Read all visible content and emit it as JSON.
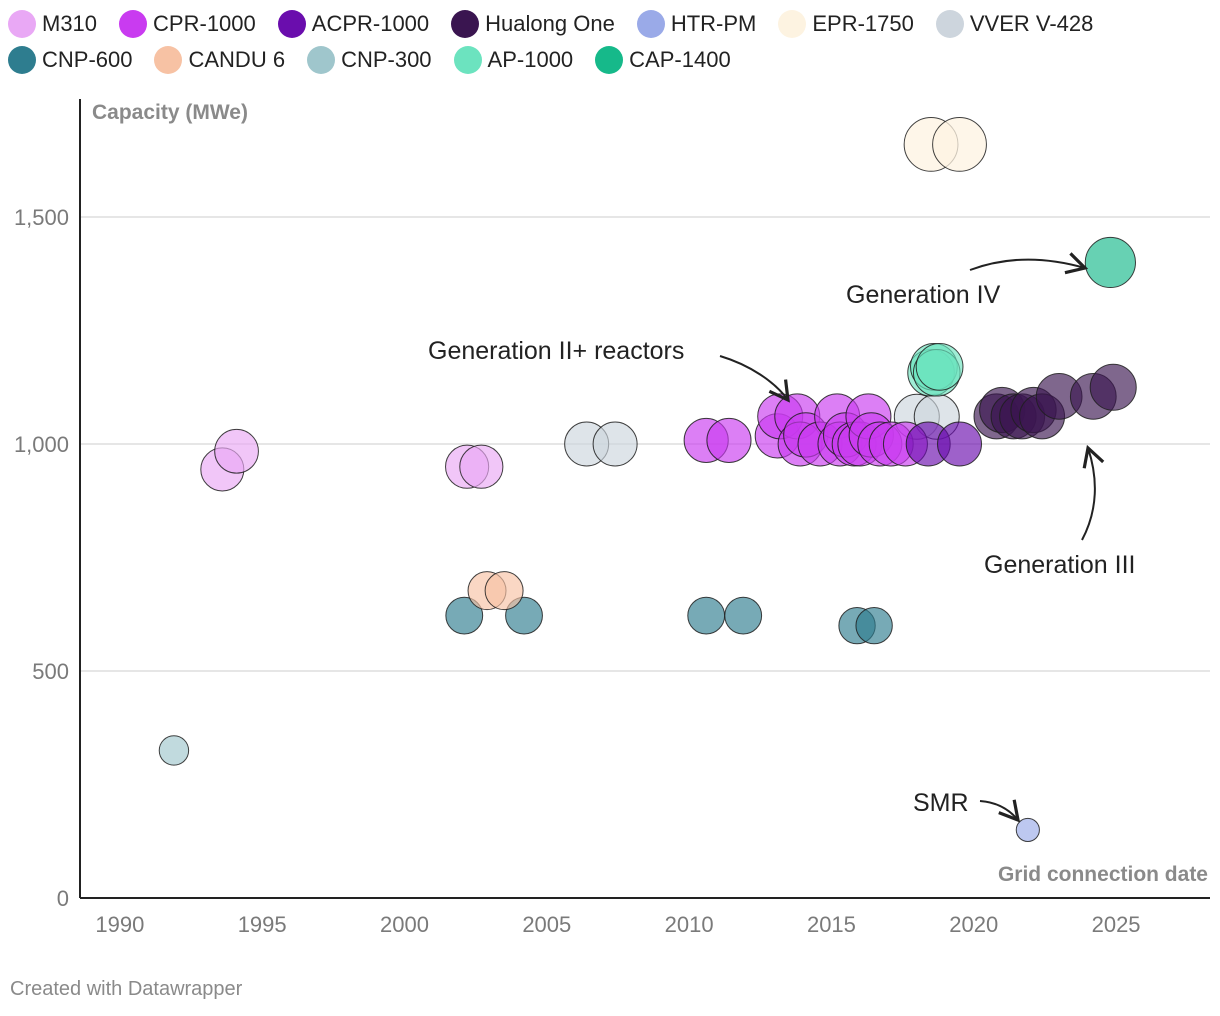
{
  "legend": [
    {
      "name": "M310",
      "color": "#e9a8f5"
    },
    {
      "name": "CPR-1000",
      "color": "#c93bf0"
    },
    {
      "name": "ACPR-1000",
      "color": "#6a0dad"
    },
    {
      "name": "Hualong One",
      "color": "#3a1550"
    },
    {
      "name": "HTR-PM",
      "color": "#9aaae8"
    },
    {
      "name": "EPR-1750",
      "color": "#fdf3e1"
    },
    {
      "name": "VVER V-428",
      "color": "#cdd5dd"
    },
    {
      "name": "CNP-600",
      "color": "#2e7d8f"
    },
    {
      "name": "CANDU 6",
      "color": "#f7c2a4"
    },
    {
      "name": "CNP-300",
      "color": "#9fc6cc"
    },
    {
      "name": "AP-1000",
      "color": "#6ce3bf"
    },
    {
      "name": "CAP-1400",
      "color": "#16b98a"
    }
  ],
  "footer": "Created with Datawrapper",
  "chart_data": {
    "type": "scatter",
    "xlabel": "Grid connection date",
    "ylabel": "Capacity (MWe)",
    "xlim": [
      1988.6,
      2028.3
    ],
    "ylim": [
      0,
      1760
    ],
    "xticks": [
      {
        "value": 1990,
        "label": "1990"
      },
      {
        "value": 1995,
        "label": "1995"
      },
      {
        "value": 2000,
        "label": "2000"
      },
      {
        "value": 2005,
        "label": "2005"
      },
      {
        "value": 2010,
        "label": "2010"
      },
      {
        "value": 2015,
        "label": "2015"
      },
      {
        "value": 2020,
        "label": "2020"
      },
      {
        "value": 2025,
        "label": "2025"
      }
    ],
    "yticks": [
      {
        "value": 0,
        "label": "0"
      },
      {
        "value": 500,
        "label": "500"
      },
      {
        "value": 1000,
        "label": "1,000"
      },
      {
        "value": 1500,
        "label": "1,500"
      }
    ],
    "series": [
      {
        "name": "CNP-300",
        "points": [
          {
            "x": 1991.9,
            "y": 325
          }
        ]
      },
      {
        "name": "M310",
        "points": [
          {
            "x": 1993.6,
            "y": 944
          },
          {
            "x": 1994.1,
            "y": 984
          },
          {
            "x": 2002.2,
            "y": 950
          },
          {
            "x": 2002.7,
            "y": 950
          }
        ]
      },
      {
        "name": "CNP-600",
        "points": [
          {
            "x": 2002.1,
            "y": 622
          },
          {
            "x": 2004.2,
            "y": 622
          },
          {
            "x": 2010.6,
            "y": 622
          },
          {
            "x": 2011.9,
            "y": 622
          },
          {
            "x": 2015.9,
            "y": 600
          },
          {
            "x": 2016.5,
            "y": 600
          }
        ]
      },
      {
        "name": "CANDU 6",
        "points": [
          {
            "x": 2002.9,
            "y": 677
          },
          {
            "x": 2003.5,
            "y": 677
          }
        ]
      },
      {
        "name": "VVER V-428",
        "points": [
          {
            "x": 2006.4,
            "y": 1000
          },
          {
            "x": 2007.4,
            "y": 1000
          },
          {
            "x": 2018.0,
            "y": 1060
          },
          {
            "x": 2018.7,
            "y": 1060
          }
        ]
      },
      {
        "name": "CPR-1000",
        "points": [
          {
            "x": 2010.6,
            "y": 1008
          },
          {
            "x": 2011.4,
            "y": 1008
          },
          {
            "x": 2013.1,
            "y": 1018
          },
          {
            "x": 2013.2,
            "y": 1061
          },
          {
            "x": 2013.8,
            "y": 1061
          },
          {
            "x": 2013.9,
            "y": 1000
          },
          {
            "x": 2014.1,
            "y": 1020
          },
          {
            "x": 2014.6,
            "y": 1000
          },
          {
            "x": 2015.2,
            "y": 1061
          },
          {
            "x": 2015.3,
            "y": 1000
          },
          {
            "x": 2015.5,
            "y": 1020
          },
          {
            "x": 2015.8,
            "y": 1000
          },
          {
            "x": 2016.0,
            "y": 1000
          },
          {
            "x": 2016.3,
            "y": 1061
          },
          {
            "x": 2016.4,
            "y": 1020
          },
          {
            "x": 2016.7,
            "y": 1000
          },
          {
            "x": 2017.1,
            "y": 1000
          },
          {
            "x": 2017.6,
            "y": 1000
          }
        ]
      },
      {
        "name": "ACPR-1000",
        "points": [
          {
            "x": 2018.4,
            "y": 1000
          },
          {
            "x": 2019.5,
            "y": 1000
          }
        ]
      },
      {
        "name": "Hualong One",
        "points": [
          {
            "x": 2020.8,
            "y": 1061
          },
          {
            "x": 2021.0,
            "y": 1075
          },
          {
            "x": 2021.4,
            "y": 1061
          },
          {
            "x": 2021.7,
            "y": 1061
          },
          {
            "x": 2022.1,
            "y": 1075
          },
          {
            "x": 2022.4,
            "y": 1061
          },
          {
            "x": 2023.0,
            "y": 1105
          },
          {
            "x": 2024.2,
            "y": 1105
          },
          {
            "x": 2024.9,
            "y": 1125
          }
        ]
      },
      {
        "name": "EPR-1750",
        "points": [
          {
            "x": 2018.5,
            "y": 1660
          },
          {
            "x": 2019.5,
            "y": 1660
          }
        ]
      },
      {
        "name": "AP-1000",
        "points": [
          {
            "x": 2018.5,
            "y": 1157
          },
          {
            "x": 2018.6,
            "y": 1170
          },
          {
            "x": 2018.7,
            "y": 1157
          },
          {
            "x": 2018.8,
            "y": 1170
          }
        ]
      },
      {
        "name": "CAP-1400",
        "points": [
          {
            "x": 2024.8,
            "y": 1400
          }
        ]
      },
      {
        "name": "HTR-PM",
        "points": [
          {
            "x": 2021.9,
            "y": 150
          }
        ]
      }
    ],
    "annotations": [
      {
        "text": "Generation IV",
        "x": 2021.4,
        "y": 1355
      },
      {
        "text": "Generation II+ reactors",
        "x": 2011.5,
        "y": 1230
      },
      {
        "text": "Generation III",
        "x": 2024.0,
        "y": 748
      },
      {
        "text": "SMR",
        "x": 2020.5,
        "y": 210
      }
    ]
  }
}
